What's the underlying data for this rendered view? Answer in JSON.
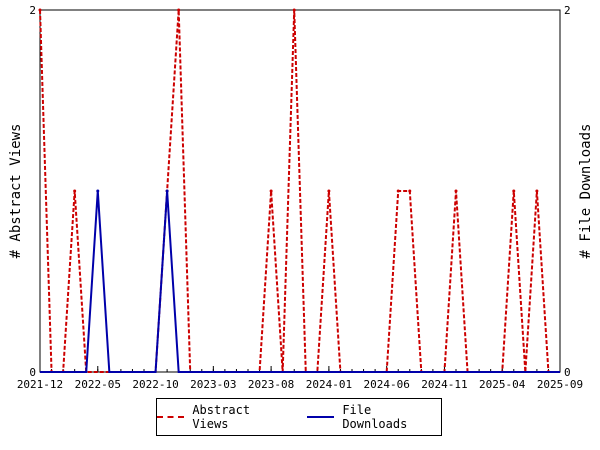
{
  "chart_data": {
    "type": "line",
    "x_ticks": [
      "2021-12",
      "2022-05",
      "2022-10",
      "2023-03",
      "2023-08",
      "2024-01",
      "2024-06",
      "2024-11",
      "2025-04",
      "2025-09"
    ],
    "y_left": {
      "label": "# Abstract Views",
      "ticks": [
        "0",
        "2"
      ],
      "ylim": [
        0,
        2
      ]
    },
    "y_right": {
      "label": "# File Downloads",
      "ticks": [
        "0",
        "2"
      ],
      "ylim": [
        0,
        2
      ]
    },
    "x": [
      "2021-12",
      "2022-01",
      "2022-02",
      "2022-03",
      "2022-04",
      "2022-05",
      "2022-06",
      "2022-07",
      "2022-08",
      "2022-09",
      "2022-10",
      "2022-11",
      "2022-12",
      "2023-01",
      "2023-02",
      "2023-03",
      "2023-04",
      "2023-05",
      "2023-06",
      "2023-07",
      "2023-08",
      "2023-09",
      "2023-10",
      "2023-11",
      "2023-12",
      "2024-01",
      "2024-02",
      "2024-03",
      "2024-04",
      "2024-05",
      "2024-06",
      "2024-07",
      "2024-08",
      "2024-09",
      "2024-10",
      "2024-11",
      "2024-12",
      "2025-01",
      "2025-02",
      "2025-03",
      "2025-04",
      "2025-05",
      "2025-06",
      "2025-07",
      "2025-08",
      "2025-09"
    ],
    "series": [
      {
        "name": "Abstract Views",
        "color": "#cc0000",
        "style": "dashed",
        "axis": "left",
        "values": [
          2,
          0,
          0,
          1,
          0,
          0,
          0,
          0,
          0,
          0,
          0,
          1,
          2,
          0,
          0,
          0,
          0,
          0,
          0,
          0,
          1,
          0,
          2,
          0,
          0,
          1,
          0,
          0,
          0,
          0,
          0,
          1,
          1,
          0,
          0,
          0,
          1,
          0,
          0,
          0,
          0,
          1,
          0,
          1,
          0,
          0
        ]
      },
      {
        "name": "File Downloads",
        "color": "#0000aa",
        "style": "solid",
        "axis": "right",
        "values": [
          0,
          0,
          0,
          0,
          0,
          1,
          0,
          0,
          0,
          0,
          0,
          1,
          0,
          0,
          0,
          0,
          0,
          0,
          0,
          0,
          0,
          0,
          0,
          0,
          0,
          0,
          0,
          0,
          0,
          0,
          0,
          0,
          0,
          0,
          0,
          0,
          0,
          0,
          0,
          0,
          0,
          0,
          0,
          0,
          0,
          0
        ]
      }
    ],
    "grid": false,
    "legend_position": "bottom"
  }
}
